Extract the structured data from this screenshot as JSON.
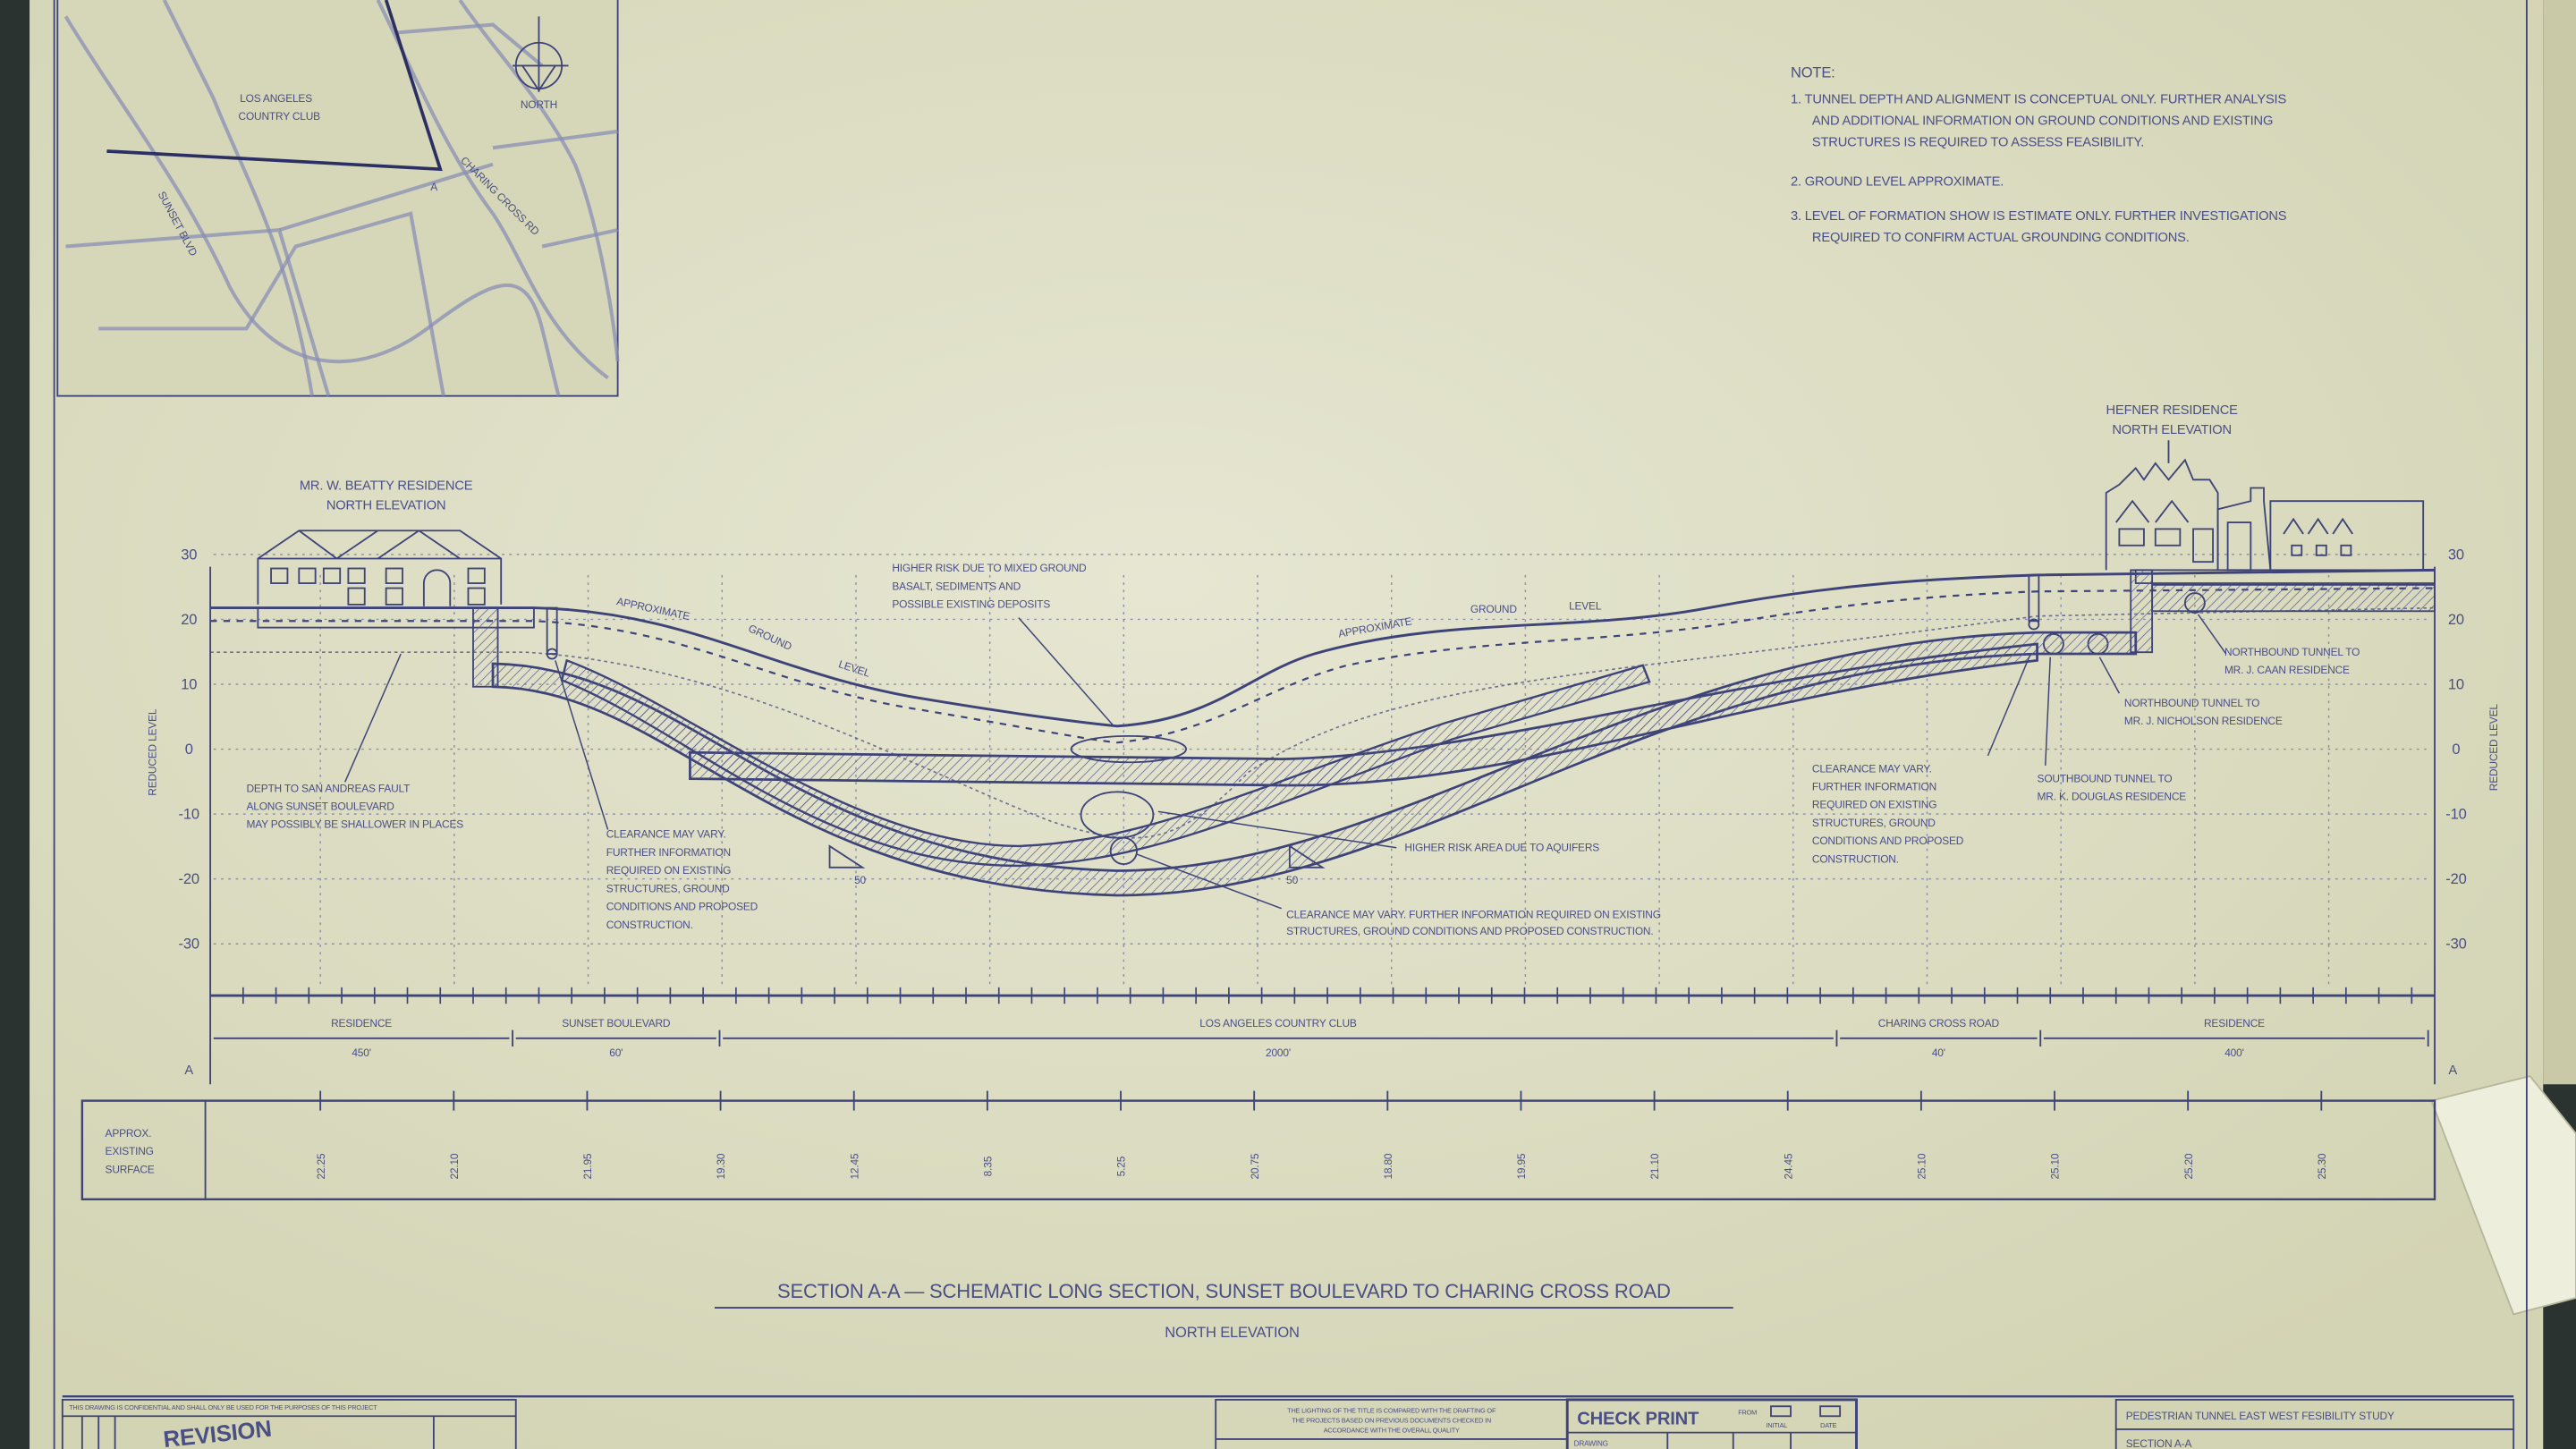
{
  "map": {
    "club_label": [
      "LOS ANGELES",
      "COUNTRY CLUB"
    ],
    "north_label": "NORTH",
    "sunset_label": "SUNSET BLVD",
    "charing_label": "CHARING CROSS RD",
    "section_marker": "A"
  },
  "notes": {
    "heading": "NOTE:",
    "items": [
      [
        "1. TUNNEL DEPTH AND ALIGNMENT IS CONCEPTUAL ONLY. FURTHER ANALYSIS",
        "AND ADDITIONAL INFORMATION ON GROUND CONDITIONS AND EXISTING",
        "STRUCTURES IS REQUIRED TO ASSESS FEASIBILITY."
      ],
      [
        "2. GROUND LEVEL APPROXIMATE."
      ],
      [
        "3. LEVEL OF FORMATION SHOW IS ESTIMATE ONLY. FURTHER INVESTIGATIONS",
        "REQUIRED TO CONFIRM ACTUAL GROUNDING CONDITIONS."
      ]
    ]
  },
  "axis": {
    "label": "REDUCED LEVEL",
    "ticks": [
      "30",
      "20",
      "10",
      "0",
      "-10",
      "-20",
      "-30"
    ]
  },
  "buildings": {
    "left": [
      "MR. W. BEATTY RESIDENCE",
      "NORTH ELEVATION"
    ],
    "right": [
      "HEFNER RESIDENCE",
      "NORTH ELEVATION"
    ]
  },
  "ground_label": {
    "left": [
      "APPROXIMATE",
      "GROUND",
      "LEVEL"
    ],
    "right": [
      "APPROXIMATE",
      "GROUND",
      "LEVEL"
    ]
  },
  "annotations": {
    "mixed_ground": [
      "HIGHER RISK DUE TO MIXED GROUND",
      "BASALT, SEDIMENTS AND",
      "POSSIBLE EXISTING DEPOSITS"
    ],
    "fault": [
      "DEPTH TO SAN ANDREAS FAULT",
      "ALONG SUNSET BOULEVARD",
      "MAY POSSIBLY BE SHALLOWER IN PLACES"
    ],
    "clearance_left": [
      "CLEARANCE MAY VARY.",
      "FURTHER INFORMATION",
      "REQUIRED ON EXISTING",
      "STRUCTURES, GROUND",
      "CONDITIONS AND PROPOSED",
      "CONSTRUCTION."
    ],
    "aquifers": "HIGHER RISK AREA DUE TO AQUIFERS",
    "clearance_mid": [
      "CLEARANCE MAY VARY. FURTHER INFORMATION REQUIRED ON EXISTING",
      "STRUCTURES, GROUND CONDITIONS AND PROPOSED CONSTRUCTION."
    ],
    "clearance_right": [
      "CLEARANCE MAY VARY.",
      "FURTHER INFORMATION",
      "REQUIRED ON EXISTING",
      "STRUCTURES, GROUND",
      "CONDITIONS AND PROPOSED",
      "CONSTRUCTION."
    ],
    "douglas": [
      "SOUTHBOUND TUNNEL TO",
      "MR. K. DOUGLAS RESIDENCE"
    ],
    "nicholson": [
      "NORTHBOUND TUNNEL TO",
      "MR. J. NICHOLSON RESIDENCE"
    ],
    "caan": [
      "NORTHBOUND TUNNEL TO",
      "MR. J. CAAN RESIDENCE"
    ],
    "slope_marks": [
      "50",
      "50"
    ]
  },
  "segments": [
    {
      "label": "RESIDENCE",
      "length": "450'"
    },
    {
      "label": "SUNSET BOULEVARD",
      "length": "60'"
    },
    {
      "label": "LOS ANGELES COUNTRY CLUB",
      "length": "2000'"
    },
    {
      "label": "CHARING CROSS ROAD",
      "length": "40'"
    },
    {
      "label": "RESIDENCE",
      "length": "400'"
    }
  ],
  "section_marker": "A",
  "surface_table": {
    "row_label": [
      "APPROX.",
      "EXISTING",
      "SURFACE"
    ],
    "values": [
      "22.25",
      "22.10",
      "21.95",
      "19.30",
      "12.45",
      "8.35",
      "5.25",
      "20.75",
      "18.80",
      "19.95",
      "21.10",
      "24.45",
      "25.10",
      "25.10",
      "25.20",
      "25.30"
    ]
  },
  "title": "SECTION A-A — SCHEMATIC LONG SECTION, SUNSET BOULEVARD TO CHARING CROSS ROAD",
  "subtitle": "NORTH ELEVATION",
  "title_block": {
    "disclaimer": "THIS DRAWING IS CONFIDENTIAL AND SHALL ONLY BE USED FOR THE PURPOSES OF THIS PROJECT",
    "revision_stamp": "REVISION",
    "compliance": [
      "THE LIGHTING OF THE TITLE IS COMPARED WITH THE DRAFTING OF",
      "THE PROJECTS BASED ON PREVIOUS DOCUMENTS CHECKED IN",
      "ACCORDANCE WITH THE OVERALL QUALITY"
    ],
    "check_print": "CHECK PRINT",
    "check_fields": [
      "FROM",
      "INITIAL",
      "DATE"
    ],
    "drawing_label": "DRAWING",
    "project": "PEDESTRIAN TUNNEL EAST WEST FESIBILITY STUDY",
    "sheet": "SECTION A-A"
  },
  "colors": {
    "paper": "#dcdcc2",
    "ink": "#3e4378",
    "background": "#2b3330"
  }
}
